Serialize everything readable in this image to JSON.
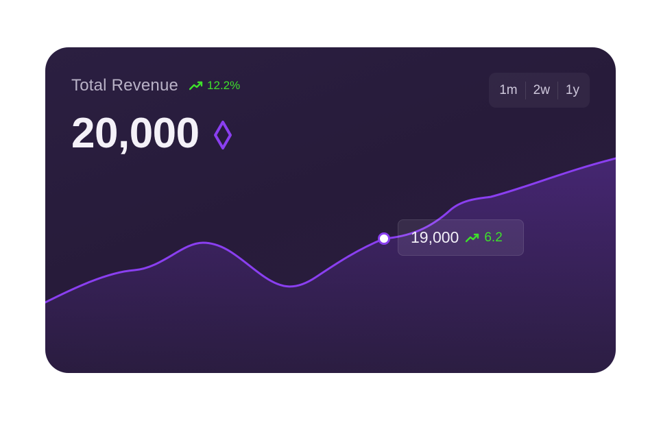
{
  "card": {
    "title": "Total Revenue",
    "title_change": "12.2%",
    "total_value": "20,000",
    "currency_icon": "diamond-icon",
    "periods": [
      "1m",
      "2w",
      "1y"
    ]
  },
  "tooltip": {
    "value": "19,000",
    "change": "6.2"
  },
  "colors": {
    "accent": "#8a3ff0",
    "positive": "#3ee02b",
    "card_bg": "#271b3a"
  },
  "chart_data": {
    "type": "area",
    "x": [
      0,
      1,
      2,
      3,
      4,
      5,
      6,
      7,
      8,
      9,
      10,
      11,
      12
    ],
    "values": [
      12.5,
      14.5,
      15.5,
      17.0,
      16.0,
      14.0,
      16.0,
      19.0,
      19.3,
      20.5,
      21.0,
      22.0,
      23.0
    ],
    "highlight_index": 7,
    "title": "",
    "xlabel": "",
    "ylabel": "",
    "grid": false,
    "legend": "none"
  }
}
